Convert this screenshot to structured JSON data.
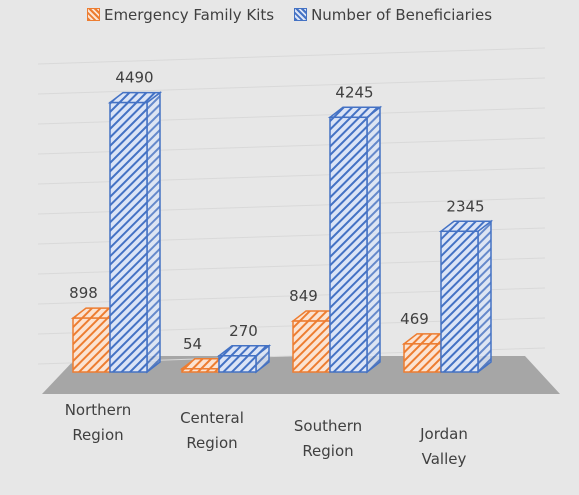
{
  "chart_data": {
    "type": "bar3d",
    "categories": [
      "Northern Region",
      "Centeral Region",
      "Southern Region",
      "Jordan Valley"
    ],
    "series": [
      {
        "name": "Emergency Family Kits",
        "color": "#ed7d31",
        "values": [
          898,
          54,
          849,
          469
        ]
      },
      {
        "name": "Number of Beneficiaries",
        "color": "#4472c4",
        "values": [
          4490,
          270,
          4245,
          2345
        ]
      }
    ],
    "ylim": [
      0,
      5000
    ],
    "yticks": [
      0,
      500,
      1000,
      1500,
      2000,
      2500,
      3000,
      3500,
      4000,
      4500,
      5000
    ],
    "grid": true,
    "legend": "top"
  }
}
